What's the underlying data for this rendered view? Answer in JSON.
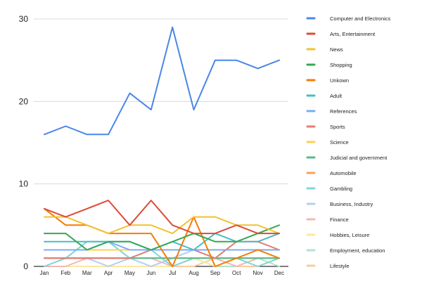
{
  "chart_data": {
    "type": "line",
    "title": "",
    "xlabel": "",
    "ylabel": "",
    "categories": [
      "Jan",
      "Feb",
      "Mar",
      "Apr",
      "May",
      "Jun",
      "Jul",
      "Aug",
      "Sep",
      "Oct",
      "Nov",
      "Dec"
    ],
    "ylim": [
      0,
      30
    ],
    "yticks": [
      0,
      10,
      20,
      30
    ],
    "grid": true,
    "legend": "right",
    "series": [
      {
        "name": "Computer and Electronics",
        "color": "#4a86e8",
        "values": [
          16,
          17,
          16,
          16,
          21,
          19,
          29,
          19,
          25,
          25,
          24,
          25
        ]
      },
      {
        "name": "Arts, Entertainment",
        "color": "#dd4b39",
        "values": [
          7,
          6,
          7,
          8,
          5,
          8,
          5,
          4,
          4,
          5,
          4,
          4
        ]
      },
      {
        "name": "News",
        "color": "#f1c232",
        "values": [
          6,
          6,
          5,
          4,
          5,
          5,
          4,
          6,
          6,
          5,
          5,
          4
        ]
      },
      {
        "name": "Shopping",
        "color": "#34a853",
        "values": [
          4,
          4,
          2,
          3,
          3,
          2,
          3,
          4,
          3,
          3,
          4,
          5
        ]
      },
      {
        "name": "Unkown",
        "color": "#f57c00",
        "values": [
          7,
          5,
          5,
          4,
          4,
          4,
          0,
          6,
          0,
          1,
          2,
          1
        ]
      },
      {
        "name": "Adult",
        "color": "#46bdc6",
        "values": [
          3,
          3,
          3,
          3,
          3,
          2,
          3,
          2,
          4,
          3,
          3,
          4
        ]
      },
      {
        "name": "References",
        "color": "#7baaf7",
        "values": [
          2,
          2,
          2,
          3,
          2,
          2,
          2,
          2,
          2,
          2,
          2,
          2
        ]
      },
      {
        "name": "Sports",
        "color": "#e67c73",
        "values": [
          1,
          1,
          1,
          1,
          1,
          2,
          2,
          2,
          1,
          3,
          3,
          2
        ]
      },
      {
        "name": "Science",
        "color": "#fcd04f",
        "values": [
          2,
          2,
          2,
          2,
          2,
          2,
          2,
          2,
          2,
          2,
          2,
          2
        ]
      },
      {
        "name": "Judicial and government",
        "color": "#57bb8a",
        "values": [
          1,
          1,
          1,
          1,
          1,
          1,
          1,
          1,
          1,
          1,
          1,
          1
        ]
      },
      {
        "name": "Automobile",
        "color": "#f6a35c",
        "values": [
          1,
          1,
          1,
          1,
          1,
          1,
          1,
          1,
          1,
          1,
          1,
          1
        ]
      },
      {
        "name": "Gambling",
        "color": "#7fd6dc",
        "values": [
          0,
          1,
          3,
          3,
          1,
          2,
          0,
          1,
          1,
          1,
          0,
          1
        ]
      },
      {
        "name": "Business, Industry",
        "color": "#b3cdf7",
        "values": [
          0,
          1,
          1,
          0,
          1,
          0,
          1,
          2,
          1,
          1,
          1,
          1
        ]
      },
      {
        "name": "Finance",
        "color": "#f4b7b2",
        "values": [
          0,
          0,
          1,
          1,
          1,
          1,
          0,
          1,
          1,
          0,
          1,
          1
        ]
      },
      {
        "name": "Hobbies, Leisure",
        "color": "#fde8a3",
        "values": [
          0,
          0,
          0,
          0,
          0,
          0,
          0,
          1,
          0,
          1,
          0,
          1
        ]
      },
      {
        "name": "Employment, education",
        "color": "#b7e1c7",
        "values": [
          0,
          0,
          0,
          0,
          0,
          0,
          1,
          1,
          0,
          0,
          1,
          0
        ]
      },
      {
        "name": "Lifestyle",
        "color": "#fbcb9e",
        "values": [
          0,
          0,
          0,
          0,
          0,
          0,
          0,
          0,
          1,
          0,
          0,
          1
        ]
      }
    ]
  }
}
